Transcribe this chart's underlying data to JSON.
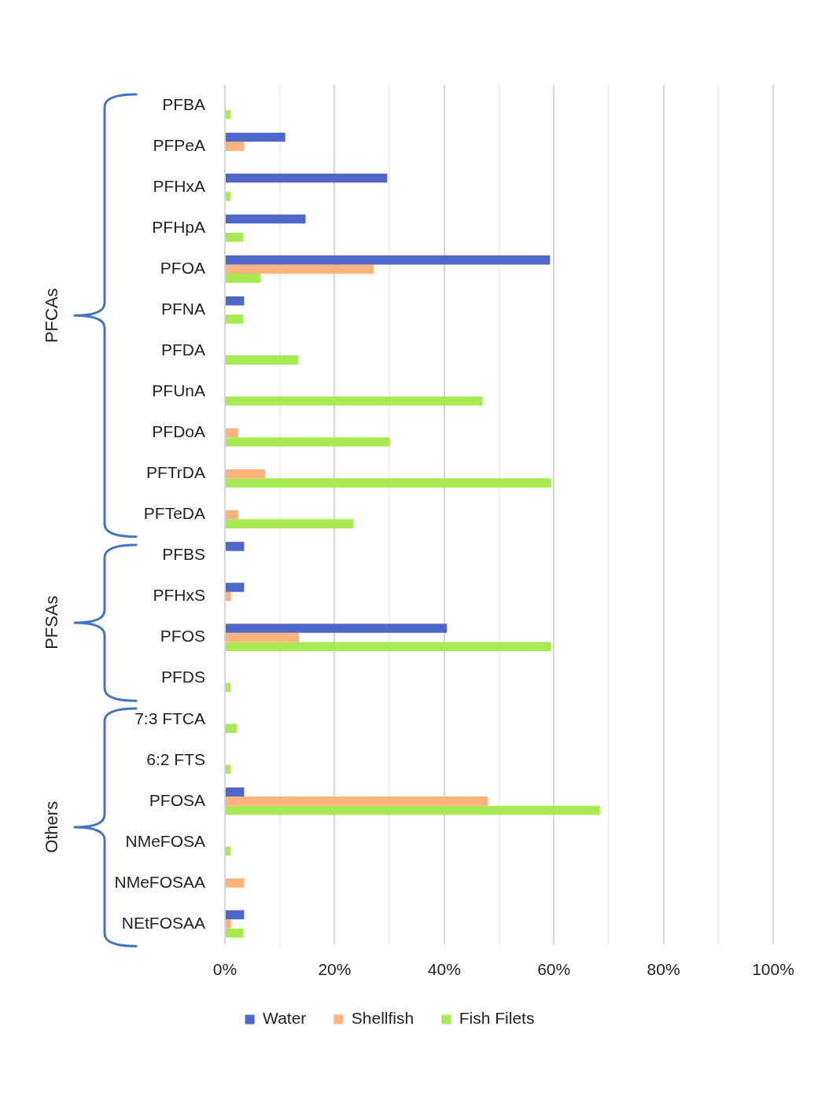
{
  "chart_data": {
    "type": "bar",
    "orientation": "horizontal",
    "categories": [
      "PFBA",
      "PFPeA",
      "PFHxA",
      "PFHpA",
      "PFOA",
      "PFNA",
      "PFDA",
      "PFUnA",
      "PFDoA",
      "PFTrDA",
      "PFTeDA",
      "PFBS",
      "PFHxS",
      "PFOS",
      "PFDS",
      "7:3 FTCA",
      "6:2 FTS",
      "PFOSA",
      "NMeFOSA",
      "NMeFOSAA",
      "NEtFOSAA"
    ],
    "series": [
      {
        "name": "Water",
        "color": "#4e67c8",
        "values": [
          0,
          11,
          29.6,
          14.7,
          59.3,
          3.5,
          0,
          0,
          0,
          0,
          0,
          3.5,
          3.5,
          40.5,
          0,
          0,
          0,
          3.5,
          0,
          0,
          3.5
        ]
      },
      {
        "name": "Shellfish",
        "color": "#ffb27c",
        "values": [
          0,
          3.5,
          0,
          0,
          27.1,
          0,
          0,
          0,
          2.4,
          7.3,
          2.4,
          0,
          1.1,
          13.5,
          0,
          0,
          0,
          48,
          0,
          3.5,
          1.1
        ]
      },
      {
        "name": "Fish Filets",
        "color": "#a7ea52",
        "values": [
          1,
          0,
          1,
          3.3,
          6.5,
          3.3,
          13.4,
          47,
          30.1,
          59.5,
          23.4,
          0,
          0,
          59.5,
          1,
          2.2,
          1,
          68.4,
          1,
          0,
          3.3
        ]
      }
    ],
    "xlim": [
      0,
      100
    ],
    "xticks": [
      {
        "value": 0,
        "label": "0%"
      },
      {
        "value": 10,
        "label": null
      },
      {
        "value": 20,
        "label": "20%"
      },
      {
        "value": 30,
        "label": null
      },
      {
        "value": 40,
        "label": "40%"
      },
      {
        "value": 50,
        "label": null
      },
      {
        "value": 60,
        "label": "60%"
      },
      {
        "value": 70,
        "label": null
      },
      {
        "value": 80,
        "label": "80%"
      },
      {
        "value": 90,
        "label": null
      },
      {
        "value": 100,
        "label": "100%"
      }
    ],
    "grid": "x",
    "legend": "bottom",
    "annotations": [
      "PFCAs",
      "PFSAs",
      "Others"
    ]
  }
}
